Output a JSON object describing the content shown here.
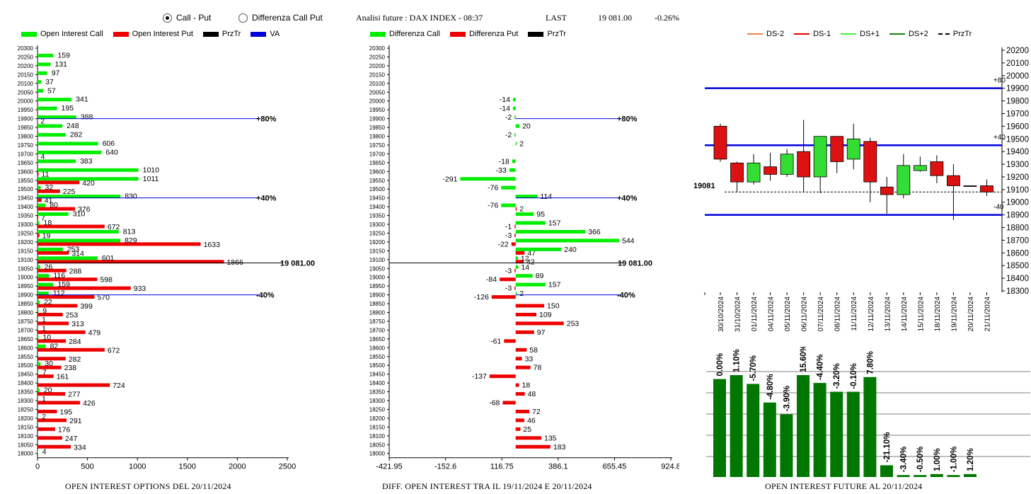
{
  "header": {
    "radio_call_put": "Call - Put",
    "radio_diff": "Differenza Call Put",
    "title": "Analisi future : DAX INDEX - 08:37",
    "last_label": "LAST",
    "last_value": "19 081.00",
    "change": "-0.26%"
  },
  "legend1": [
    "Open Interest Call",
    "Open Interest Put",
    "PrzTr",
    "VA"
  ],
  "legend2": [
    "Differenza Call",
    "Differenza Put",
    "PrzTr"
  ],
  "legend3": [
    "DS-2",
    "DS-1",
    "DS+1",
    "DS+2",
    "PrzTr"
  ],
  "colors": {
    "call": "#00ee00",
    "put": "#ee0000",
    "va": "#0000dd",
    "candle_up": "#33dd33",
    "candle_down": "#dd1111",
    "volume": "#007700"
  },
  "footers": {
    "f1": "OPEN INTEREST OPTIONS DEL 20/11/2024",
    "f2": "DIFF. OPEN INTEREST TRA IL 19/11/2024 E 20/11/2024",
    "f3": "OPEN INTEREST FUTURE AL 20/11/2024"
  },
  "chart_data": [
    {
      "type": "bar",
      "orientation": "horizontal",
      "title": "OPEN INTEREST OPTIONS DEL 20/11/2024",
      "strikes": [
        "20300",
        "20250",
        "20200",
        "20150",
        "20100",
        "20050",
        "20000",
        "19950",
        "19900",
        "19850",
        "19800",
        "19750",
        "19700",
        "19650",
        "19600",
        "19550",
        "19500",
        "19450",
        "19400",
        "19350",
        "19300",
        "19250",
        "19200",
        "19150",
        "19100",
        "19050",
        "19000",
        "18950",
        "18900",
        "18850",
        "18800",
        "18750",
        "18700",
        "18650",
        "18600",
        "18550",
        "18500",
        "18450",
        "18400",
        "18350",
        "18300",
        "18250",
        "18200",
        "18150",
        "18100",
        "18050",
        "18000"
      ],
      "series": [
        {
          "name": "Open Interest Call",
          "values": [
            null,
            159,
            131,
            97,
            37,
            57,
            341,
            195,
            388,
            248,
            282,
            606,
            640,
            383,
            1010,
            1011,
            32,
            830,
            80,
            310,
            18,
            813,
            829,
            253,
            601,
            26,
            116,
            159,
            112,
            22,
            9,
            1,
            1,
            10,
            82,
            null,
            30,
            7,
            null,
            20,
            1,
            null,
            2,
            null,
            null,
            null,
            4
          ]
        },
        {
          "name": "Open Interest Put",
          "values": [
            null,
            null,
            null,
            null,
            null,
            null,
            null,
            null,
            2,
            null,
            null,
            null,
            4,
            null,
            11,
            420,
            225,
            41,
            376,
            7,
            672,
            19,
            1633,
            314,
            1866,
            288,
            598,
            933,
            570,
            399,
            253,
            313,
            479,
            284,
            672,
            282,
            238,
            161,
            724,
            277,
            426,
            195,
            291,
            176,
            247,
            334,
            null
          ]
        }
      ],
      "xticks": [
        "0",
        "500",
        "1000",
        "1500",
        "2000",
        "2500"
      ],
      "xlim": [
        0,
        2500
      ],
      "price_label": "19 081.00",
      "price_value": 19081,
      "va_lines": [
        {
          "strike": "19900",
          "label": "+80%"
        },
        {
          "strike": "19450",
          "label": "+40%"
        },
        {
          "strike": "18900",
          "label": "-40%"
        }
      ]
    },
    {
      "type": "bar",
      "orientation": "horizontal",
      "title": "DIFF. OPEN INTEREST TRA IL 19/11/2024 E 20/11/2024",
      "strikes": [
        "20300",
        "20250",
        "20200",
        "20150",
        "20100",
        "20050",
        "20000",
        "19950",
        "19900",
        "19850",
        "19800",
        "19750",
        "19700",
        "19650",
        "19600",
        "19550",
        "19500",
        "19450",
        "19400",
        "19350",
        "19300",
        "19250",
        "19200",
        "19150",
        "19100",
        "19050",
        "19000",
        "18950",
        "18900",
        "18850",
        "18800",
        "18750",
        "18700",
        "18650",
        "18600",
        "18550",
        "18500",
        "18450",
        "18400",
        "18350",
        "18300",
        "18250",
        "18200",
        "18150",
        "18100",
        "18050",
        "18000"
      ],
      "series": [
        {
          "name": "Differenza Call",
          "values": [
            null,
            null,
            null,
            null,
            null,
            null,
            -14,
            -14,
            -2,
            20,
            -2,
            2,
            null,
            -18,
            -33,
            -291,
            -76,
            114,
            -76,
            95,
            157,
            366,
            544,
            240,
            12,
            14,
            89,
            157,
            2,
            null,
            null,
            null,
            null,
            null,
            null,
            null,
            null,
            null,
            null,
            null,
            null,
            null,
            null,
            null,
            null,
            null,
            null
          ]
        },
        {
          "name": "Differenza Put",
          "values": [
            null,
            null,
            null,
            null,
            null,
            null,
            null,
            null,
            null,
            null,
            null,
            null,
            null,
            null,
            null,
            null,
            null,
            null,
            2,
            null,
            -1,
            -3,
            -22,
            47,
            42,
            -3,
            -84,
            -3,
            -126,
            150,
            109,
            253,
            97,
            -61,
            58,
            33,
            78,
            -137,
            18,
            48,
            -68,
            72,
            46,
            25,
            135,
            183,
            null
          ]
        }
      ],
      "xticks": [
        "-421.95",
        "-152.6",
        "116.75",
        "386.1",
        "655.45",
        "924.8"
      ],
      "xlim": [
        -421.95,
        924.8
      ],
      "price_label": "19 081.00",
      "va_lines": [
        {
          "strike": "19900",
          "label": "+80%"
        },
        {
          "strike": "19450",
          "label": "+40%"
        },
        {
          "strike": "18900",
          "label": "-40%"
        }
      ]
    },
    {
      "type": "candlestick",
      "dates": [
        "30/10/2024",
        "31/10/2024",
        "01/11/2024",
        "04/11/2024",
        "05/11/2024",
        "06/11/2024",
        "07/11/2024",
        "08/11/2024",
        "11/11/2024",
        "12/11/2024",
        "13/11/2024",
        "14/11/2024",
        "15/11/2024",
        "18/11/2024",
        "19/11/2024",
        "20/11/2024",
        "21/11/2024"
      ],
      "ohlc": [
        [
          19600,
          19620,
          19320,
          19340
        ],
        [
          19310,
          19320,
          19080,
          19160
        ],
        [
          19160,
          19380,
          19140,
          19310
        ],
        [
          19280,
          19390,
          19170,
          19220
        ],
        [
          19220,
          19420,
          19200,
          19380
        ],
        [
          19400,
          19650,
          19080,
          19200
        ],
        [
          19200,
          19520,
          19070,
          19520
        ],
        [
          19520,
          19520,
          19230,
          19320
        ],
        [
          19340,
          19620,
          19260,
          19500
        ],
        [
          19480,
          19510,
          19000,
          19160
        ],
        [
          19120,
          19200,
          18910,
          19060
        ],
        [
          19060,
          19380,
          19030,
          19290
        ],
        [
          19250,
          19360,
          19240,
          19290
        ],
        [
          19320,
          19370,
          19150,
          19210
        ],
        [
          19210,
          19300,
          18860,
          19130
        ],
        [
          19130,
          19130,
          19130,
          19130
        ],
        [
          19130,
          19180,
          19050,
          19081
        ]
      ],
      "yticks": [
        "20200",
        "20100",
        "20000",
        "19900",
        "19800",
        "19700",
        "19600",
        "19500",
        "19400",
        "19300",
        "19200",
        "19100",
        "19000",
        "18900",
        "18800",
        "18700",
        "18600",
        "18500",
        "18400",
        "18300"
      ],
      "ylim": [
        18300,
        20200
      ],
      "price_label": "19081",
      "price_value": 19081,
      "band_lines": [
        {
          "value": 19900,
          "label": "+80"
        },
        {
          "value": 19450,
          "label": "+40"
        },
        {
          "value": 18900,
          "label": "-40"
        }
      ]
    },
    {
      "type": "bar",
      "title": "OPEN INTEREST FUTURE AL 20/11/2024",
      "labels": [
        "0.00%",
        "1.10%",
        "-5.70%",
        "-4.80%",
        "-3.90%",
        "15.60%",
        "-4.40%",
        "-3.20%",
        "-0.10%",
        "7.80%",
        "-21.10%",
        "-3.40%",
        "-0.50%",
        "1.00%",
        "-1.00%",
        "1.20%"
      ],
      "values": [
        100,
        104,
        95,
        76,
        64,
        104,
        96,
        87,
        87,
        102,
        12,
        2,
        2,
        3,
        2,
        3
      ]
    }
  ]
}
